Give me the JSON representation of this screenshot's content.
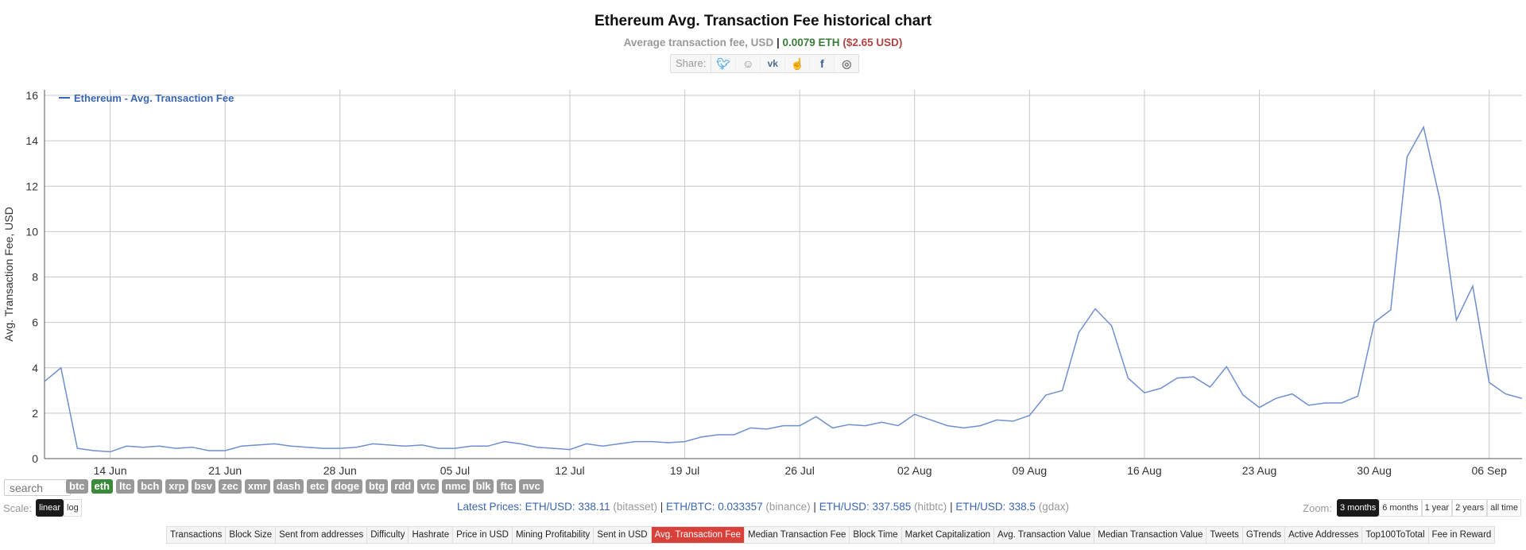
{
  "header": {
    "title": "Ethereum Avg. Transaction Fee historical chart",
    "subtitle_label": "Average transaction fee, USD",
    "subtitle_sep": "|",
    "subtitle_eth": "0.0079 ETH",
    "subtitle_usd": "($2.65 USD)"
  },
  "share": {
    "label": "Share:",
    "icons": [
      "twitter-icon",
      "reddit-icon",
      "vk-icon",
      "like-icon",
      "facebook-icon",
      "weibo-icon"
    ]
  },
  "search": {
    "placeholder": "search"
  },
  "coins": [
    "btc",
    "eth",
    "ltc",
    "bch",
    "xrp",
    "bsv",
    "zec",
    "xmr",
    "dash",
    "etc",
    "doge",
    "btg",
    "rdd",
    "vtc",
    "nmc",
    "blk",
    "ftc",
    "nvc"
  ],
  "active_coin": "eth",
  "scale": {
    "label": "Scale:",
    "options": [
      "linear",
      "log"
    ],
    "active": "linear"
  },
  "latest_prices": {
    "label": "Latest Prices:",
    "items": [
      {
        "pair": "ETH/USD:",
        "value": "338.11",
        "source": "(bitasset)"
      },
      {
        "pair": "ETH/BTC:",
        "value": "0.033357",
        "source": "(binance)"
      },
      {
        "pair": "ETH/USD:",
        "value": "337.585",
        "source": "(hitbtc)"
      },
      {
        "pair": "ETH/USD:",
        "value": "338.5",
        "source": "(gdax)"
      }
    ]
  },
  "zoom": {
    "label": "Zoom:",
    "options": [
      "3 months",
      "6 months",
      "1 year",
      "2 years",
      "all time"
    ],
    "active": "3 months"
  },
  "menu": {
    "items": [
      "Transactions",
      "Block Size",
      "Sent from addresses",
      "Difficulty",
      "Hashrate",
      "Price in USD",
      "Mining Profitability",
      "Sent in USD",
      "Avg. Transaction Fee",
      "Median Transaction Fee",
      "Block Time",
      "Market Capitalization",
      "Avg. Transaction Value",
      "Median Transaction Value",
      "Tweets",
      "GTrends",
      "Active Addresses",
      "Top100ToTotal",
      "Fee in Reward"
    ],
    "active": "Avg. Transaction Fee"
  },
  "colors": {
    "line": "#6f8fcf",
    "legend": "#3866b0",
    "grid": "#c8c8c8",
    "active_coin": "#3a8a3a",
    "active_menu": "#d9403a"
  },
  "chart_data": {
    "type": "line",
    "title": "Ethereum Avg. Transaction Fee historical chart",
    "xlabel": "",
    "ylabel": "Avg. Transaction Fee, USD",
    "legend": [
      "Ethereum - Avg. Transaction Fee"
    ],
    "legend_position": "top-left",
    "grid": true,
    "ylim": [
      0,
      16
    ],
    "yticks": [
      0,
      2,
      4,
      6,
      8,
      10,
      12,
      14,
      16
    ],
    "xticks": [
      "14 Jun",
      "21 Jun",
      "28 Jun",
      "05 Jul",
      "12 Jul",
      "19 Jul",
      "26 Jul",
      "02 Aug",
      "09 Aug",
      "16 Aug",
      "23 Aug",
      "30 Aug",
      "06 Sep"
    ],
    "x_start": "10 Jun",
    "x_end": "08 Sep",
    "series": [
      {
        "name": "Ethereum - Avg. Transaction Fee",
        "values": [
          3.4,
          4.0,
          0.45,
          0.35,
          0.3,
          0.55,
          0.5,
          0.55,
          0.45,
          0.5,
          0.35,
          0.35,
          0.55,
          0.6,
          0.65,
          0.55,
          0.5,
          0.45,
          0.45,
          0.5,
          0.65,
          0.6,
          0.55,
          0.6,
          0.45,
          0.45,
          0.55,
          0.55,
          0.75,
          0.65,
          0.5,
          0.45,
          0.4,
          0.65,
          0.55,
          0.65,
          0.75,
          0.75,
          0.7,
          0.75,
          0.95,
          1.05,
          1.05,
          1.35,
          1.3,
          1.45,
          1.45,
          1.85,
          1.35,
          1.5,
          1.45,
          1.6,
          1.45,
          1.95,
          1.7,
          1.45,
          1.35,
          1.45,
          1.7,
          1.65,
          1.9,
          2.8,
          3.0,
          5.55,
          6.6,
          5.85,
          3.55,
          2.9,
          3.1,
          3.55,
          3.6,
          3.15,
          4.05,
          2.8,
          2.25,
          2.65,
          2.85,
          2.35,
          2.45,
          2.45,
          2.75,
          6.0,
          6.55,
          13.3,
          14.6,
          11.4,
          6.1,
          7.6,
          3.35,
          2.85,
          2.65
        ]
      }
    ]
  }
}
